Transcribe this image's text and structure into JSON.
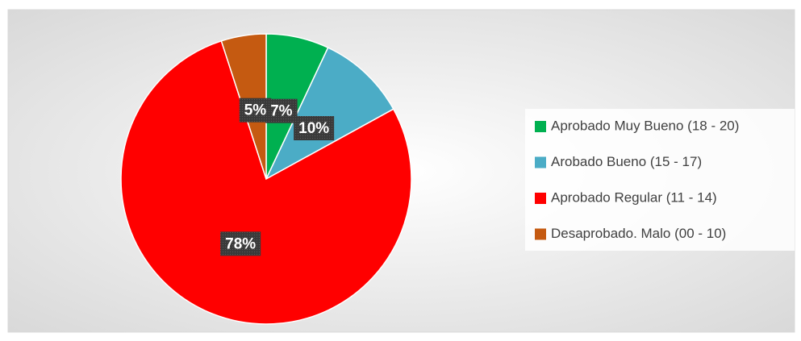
{
  "chart_data": {
    "type": "pie",
    "categories": [
      "Aprobado Muy Bueno (18 - 20)",
      "Arobado Bueno (15 - 17)",
      "Aprobado Regular (11 - 14)",
      "Desaprobado. Malo (00 - 10)"
    ],
    "values": [
      7,
      10,
      78,
      5
    ],
    "value_labels": [
      "7%",
      "10%",
      "78%",
      "5%"
    ],
    "colors": [
      "#00b050",
      "#4bacc6",
      "#ff0000",
      "#c55a11"
    ],
    "legend": "right"
  }
}
